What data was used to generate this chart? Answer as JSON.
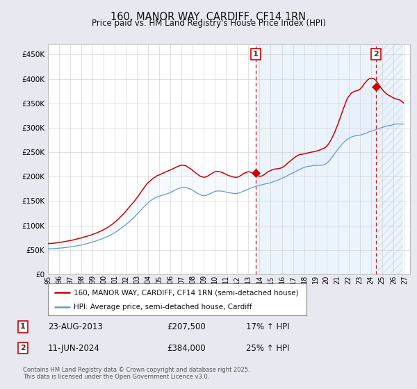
{
  "title": "160, MANOR WAY, CARDIFF, CF14 1RN",
  "subtitle": "Price paid vs. HM Land Registry's House Price Index (HPI)",
  "ylabel_ticks": [
    "£0",
    "£50K",
    "£100K",
    "£150K",
    "£200K",
    "£250K",
    "£300K",
    "£350K",
    "£400K",
    "£450K"
  ],
  "ylim": [
    0,
    470000
  ],
  "xlim_start": 1995.0,
  "xlim_end": 2027.5,
  "background_color": "#e8e8f0",
  "plot_bg_color": "#ffffff",
  "grid_color": "#cccccc",
  "red_line_color": "#cc0000",
  "blue_line_color": "#6699cc",
  "shade_color": "#ddeeff",
  "t1_x": 2013.648,
  "t1_y": 207500,
  "t2_x": 2024.44,
  "t2_y": 384000,
  "legend_entry1": "160, MANOR WAY, CARDIFF, CF14 1RN (semi-detached house)",
  "legend_entry2": "HPI: Average price, semi-detached house, Cardiff",
  "footer": "Contains HM Land Registry data © Crown copyright and database right 2025.\nThis data is licensed under the Open Government Licence v3.0.",
  "xtick_labels": [
    "95",
    "96",
    "97",
    "98",
    "99",
    "00",
    "01",
    "02",
    "03",
    "04",
    "05",
    "06",
    "07",
    "08",
    "09",
    "10",
    "11",
    "12",
    "13",
    "14",
    "15",
    "16",
    "17",
    "18",
    "19",
    "20",
    "21",
    "22",
    "23",
    "24",
    "25",
    "26",
    "27"
  ],
  "xtick_years": [
    1995,
    1996,
    1997,
    1998,
    1999,
    2000,
    2001,
    2002,
    2003,
    2004,
    2005,
    2006,
    2007,
    2008,
    2009,
    2010,
    2011,
    2012,
    2013,
    2014,
    2015,
    2016,
    2017,
    2018,
    2019,
    2020,
    2021,
    2022,
    2023,
    2024,
    2025,
    2026,
    2027
  ],
  "transaction1_label": "1",
  "transaction2_label": "2",
  "transaction1_date": "23-AUG-2013",
  "transaction1_price": "£207,500",
  "transaction1_hpi": "17% ↑ HPI",
  "transaction2_date": "11-JUN-2024",
  "transaction2_price": "£384,000",
  "transaction2_hpi": "25% ↑ HPI"
}
